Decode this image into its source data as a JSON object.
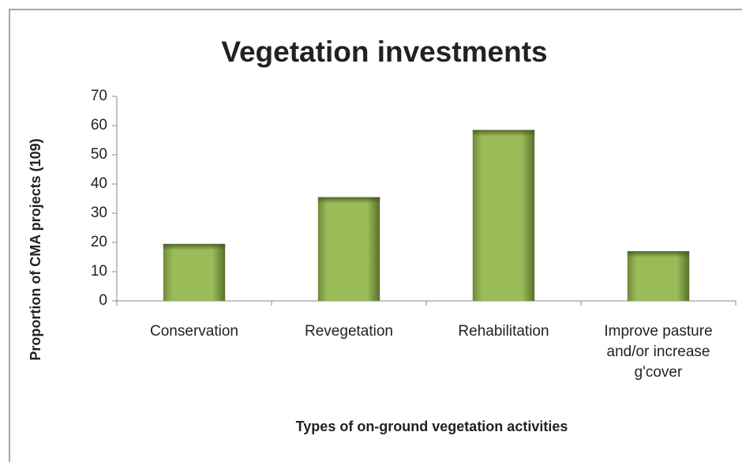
{
  "chart_data": {
    "type": "bar",
    "title": "Vegetation investments",
    "x_label": "Types of on-ground vegetation activities",
    "y_label": "Proportion of CMA projects (109)",
    "categories": [
      "Conservation",
      "Revegetation",
      "Rehabilitation",
      "Improve pasture and/or increase g'cover"
    ],
    "values": [
      19.5,
      35.5,
      58.5,
      17
    ],
    "color": "#9bbb59",
    "ylim": [
      0,
      70
    ],
    "yticks": [
      0,
      10,
      20,
      30,
      40,
      50,
      60,
      70
    ],
    "grid": false
  }
}
